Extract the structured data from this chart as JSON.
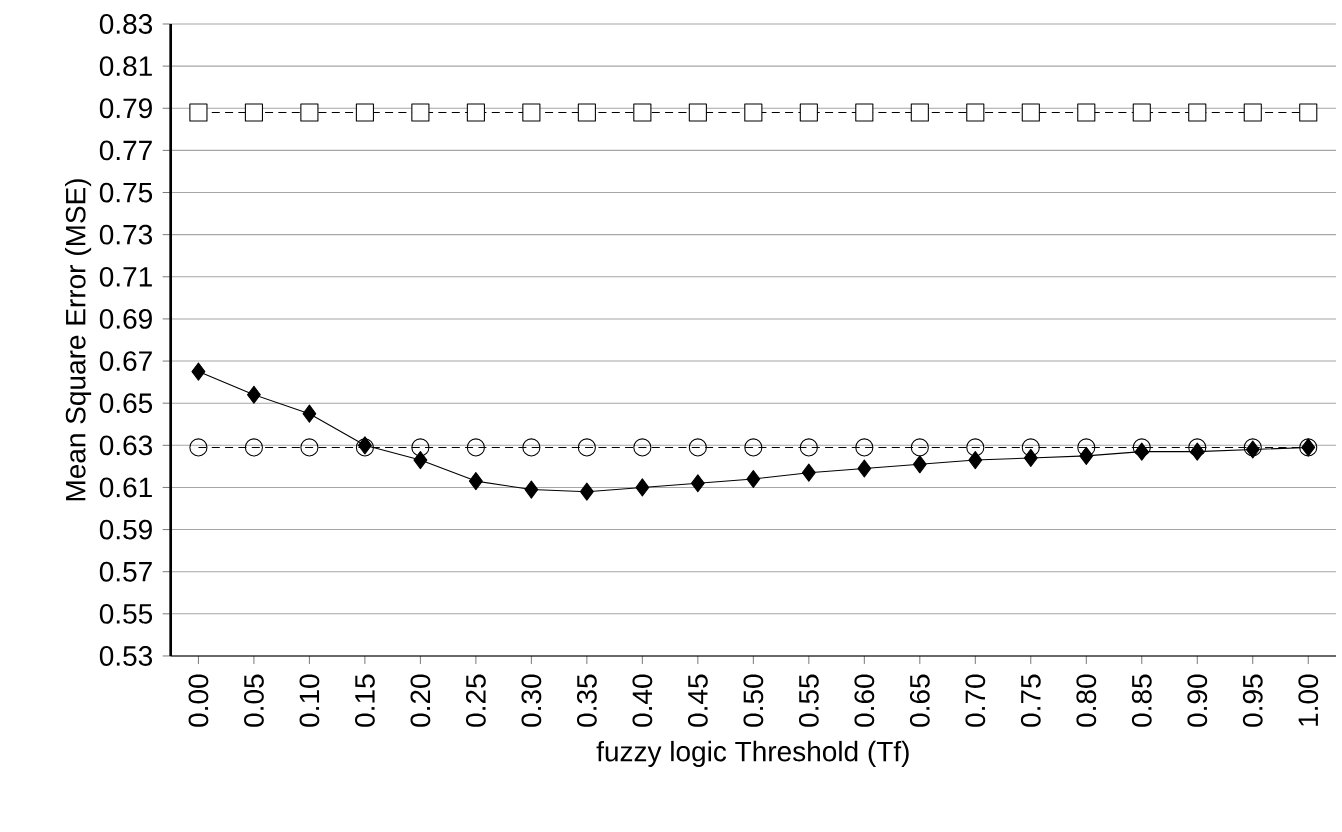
{
  "chart_data": {
    "type": "line",
    "xlabel": "fuzzy logic Threshold (Tf)",
    "ylabel": "Mean Square Error (MSE)",
    "categories": [
      "0.00",
      "0.05",
      "0.10",
      "0.15",
      "0.20",
      "0.25",
      "0.30",
      "0.35",
      "0.40",
      "0.45",
      "0.50",
      "0.55",
      "0.60",
      "0.65",
      "0.70",
      "0.75",
      "0.80",
      "0.85",
      "0.90",
      "0.95",
      "1.00"
    ],
    "series": [
      {
        "color": "#000000",
        "marker": "square",
        "line_style": "dashed",
        "values": [
          0.788,
          0.788,
          0.788,
          0.788,
          0.788,
          0.788,
          0.788,
          0.788,
          0.788,
          0.788,
          0.788,
          0.788,
          0.788,
          0.788,
          0.788,
          0.788,
          0.788,
          0.788,
          0.788,
          0.788,
          0.788
        ]
      },
      {
        "color": "#000000",
        "marker": "circle",
        "line_style": "dashed",
        "values": [
          0.629,
          0.629,
          0.629,
          0.629,
          0.629,
          0.629,
          0.629,
          0.629,
          0.629,
          0.629,
          0.629,
          0.629,
          0.629,
          0.629,
          0.629,
          0.629,
          0.629,
          0.629,
          0.629,
          0.629,
          0.629
        ]
      },
      {
        "color": "#000000",
        "marker": "diamond",
        "line_style": "solid",
        "values": [
          0.665,
          0.654,
          0.645,
          0.63,
          0.623,
          0.613,
          0.609,
          0.608,
          0.61,
          0.612,
          0.614,
          0.617,
          0.619,
          0.621,
          0.623,
          0.624,
          0.625,
          0.627,
          0.627,
          0.628,
          0.629
        ]
      }
    ],
    "ylim": [
      0.53,
      0.83
    ],
    "yticks": [
      0.53,
      0.55,
      0.57,
      0.59,
      0.61,
      0.63,
      0.65,
      0.67,
      0.69,
      0.71,
      0.73,
      0.75,
      0.77,
      0.79,
      0.81,
      0.83
    ],
    "grid": "y"
  }
}
